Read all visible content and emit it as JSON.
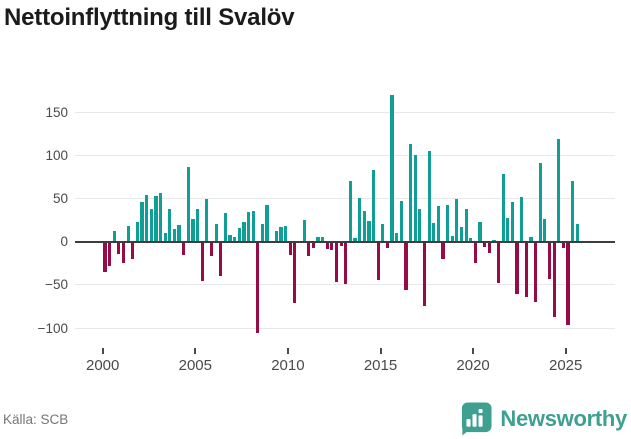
{
  "title": "Nettoinflyttning till Svalöv",
  "source": "Källa: SCB",
  "brand": {
    "name": "Newsworthy"
  },
  "colors": {
    "positive": "#0f9f97",
    "negative": "#970b49",
    "brand": "#3fa092",
    "title": "#1b1b1b",
    "axis_text": "#4a4a4a",
    "gridline": "#e8e8e8",
    "zero_line": "#3d3d3d"
  },
  "chart_data": {
    "type": "bar",
    "title": "Nettoinflyttning till Svalöv",
    "frequency": "quarterly",
    "start_period": "2000-Q1",
    "end_period": "2025-Q3",
    "grid": true,
    "legend": false,
    "ylim": [
      -115,
      180
    ],
    "y_ticks": [
      {
        "label": "150",
        "value": 150
      },
      {
        "label": "100",
        "value": 100
      },
      {
        "label": "50",
        "value": 50
      },
      {
        "label": "0",
        "value": 0
      },
      {
        "label": "−50",
        "value": -50
      },
      {
        "label": "−100",
        "value": -100
      }
    ],
    "x_ticks": [
      {
        "label": "2000",
        "year": 2000
      },
      {
        "label": "2005",
        "year": 2005
      },
      {
        "label": "2010",
        "year": 2010
      },
      {
        "label": "2015",
        "year": 2015
      },
      {
        "label": "2020",
        "year": 2020
      },
      {
        "label": "2025",
        "year": 2025
      }
    ],
    "values": [
      -35,
      -28,
      12,
      -14,
      -25,
      18,
      -20,
      23,
      46,
      54,
      38,
      53,
      56,
      10,
      38,
      15,
      19,
      -15,
      87,
      26,
      38,
      -46,
      49,
      -17,
      20,
      -40,
      33,
      8,
      5,
      16,
      23,
      34,
      36,
      -106,
      20,
      43,
      0,
      12,
      17,
      18,
      -15,
      -71,
      0,
      25,
      -16,
      -7,
      5,
      6,
      -8,
      -10,
      -47,
      -5,
      -49,
      70,
      4,
      51,
      35,
      24,
      83,
      -44,
      20,
      -7,
      170,
      10,
      47,
      -56,
      113,
      100,
      38,
      -75,
      105,
      22,
      41,
      -20,
      42,
      7,
      50,
      17,
      38,
      4,
      -25,
      23,
      -6,
      -13,
      2,
      -48,
      78,
      28,
      46,
      -61,
      52,
      -64,
      5,
      -70,
      91,
      26,
      -43,
      -87,
      119,
      -7,
      -96,
      70,
      21
    ]
  }
}
